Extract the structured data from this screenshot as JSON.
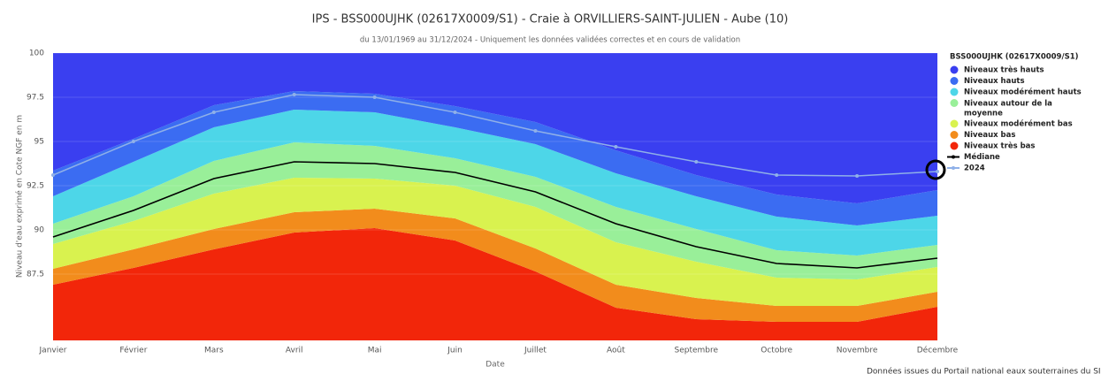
{
  "chart_data": {
    "type": "area",
    "title": "IPS - BSS000UJHK (02617X0009/S1) - Craie à ORVILLIERS-SAINT-JULIEN - Aube (10)",
    "subtitle": "du 13/01/1969 au 31/12/2024 - Uniquement les données validées correctes et en cours de validation",
    "x_label": "Date",
    "y_label": "Niveau d'eau exprimé en Cote NGF en m",
    "legend_title": "BSS000UJHK (02617X0009/S1)",
    "source": "Données issues du Portail national eaux souterraines du SIE, ADE",
    "categories": [
      "Janvier",
      "Février",
      "Mars",
      "Avril",
      "Mai",
      "Juin",
      "Juillet",
      "Août",
      "Septembre",
      "Octobre",
      "Novembre",
      "Décembre"
    ],
    "ylim": [
      83.75,
      100
    ],
    "yticks": [
      87.5,
      90,
      92.5,
      95,
      97.5,
      100
    ],
    "series": [
      {
        "name": "Niveaux très hauts",
        "kind": "band",
        "color": "#3a3ff0",
        "values": [
          100,
          100,
          100,
          100,
          100,
          100,
          100,
          100,
          100,
          100,
          100,
          100
        ]
      },
      {
        "name": "Niveaux hauts",
        "kind": "band",
        "color": "#3b6cf2",
        "values": [
          93.35,
          95.15,
          97.05,
          97.85,
          97.7,
          97,
          96.1,
          94.5,
          93.1,
          92,
          91.5,
          92.25
        ]
      },
      {
        "name": "Niveaux modérément hauts",
        "kind": "band",
        "color": "#4dd6e8",
        "values": [
          91.9,
          93.85,
          95.8,
          96.8,
          96.65,
          95.8,
          94.85,
          93.2,
          91.9,
          90.75,
          90.25,
          90.8
        ]
      },
      {
        "name": "Niveaux autour de la moyenne",
        "kind": "band",
        "color": "#99ef99",
        "values": [
          90.35,
          91.9,
          93.9,
          94.95,
          94.75,
          94.05,
          93,
          91.3,
          90.05,
          88.85,
          88.55,
          89.15
        ]
      },
      {
        "name": "Niveaux modérément bas",
        "kind": "band",
        "color": "#d9f24f",
        "values": [
          89.2,
          90.5,
          92.05,
          92.95,
          92.9,
          92.5,
          91.3,
          89.3,
          88.2,
          87.3,
          87.2,
          87.9
        ]
      },
      {
        "name": "Niveaux bas",
        "kind": "band",
        "color": "#f28c1c",
        "values": [
          87.8,
          88.9,
          90.05,
          91,
          91.2,
          90.65,
          88.95,
          86.9,
          86.15,
          85.7,
          85.7,
          86.5
        ]
      },
      {
        "name": "Niveaux très bas",
        "kind": "band",
        "color": "#f2260a",
        "values": [
          86.9,
          87.85,
          88.9,
          89.85,
          90.1,
          89.4,
          87.65,
          85.6,
          84.95,
          84.8,
          84.8,
          85.65
        ]
      },
      {
        "name": "Médiane",
        "kind": "line",
        "color": "#000000",
        "values": [
          89.6,
          91.1,
          92.9,
          93.85,
          93.75,
          93.25,
          92.15,
          90.35,
          89.05,
          88.1,
          87.85,
          88.4
        ]
      },
      {
        "name": "2024",
        "kind": "line",
        "markers": true,
        "color": "#8fb0e8",
        "values": [
          93.1,
          95,
          96.65,
          97.65,
          97.5,
          96.65,
          95.6,
          94.7,
          93.85,
          93.1,
          93.05,
          93.3
        ]
      }
    ]
  }
}
